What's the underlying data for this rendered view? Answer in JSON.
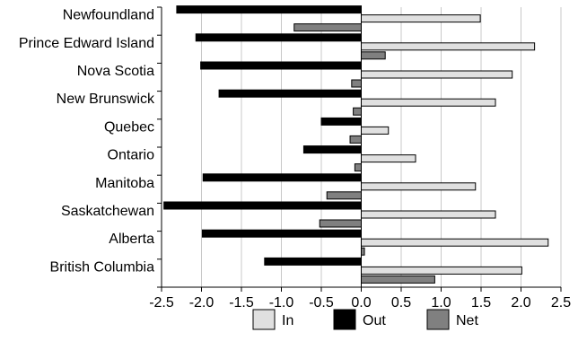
{
  "chart_data": {
    "type": "bar",
    "orientation": "horizontal",
    "categories": [
      "Newfoundland",
      "Prince Edward Island",
      "Nova Scotia",
      "New Brunswick",
      "Quebec",
      "Ontario",
      "Manitoba",
      "Saskatchewan",
      "Alberta",
      "British Columbia"
    ],
    "series": [
      {
        "name": "In",
        "color": "#e0e0e0",
        "values": [
          1.49,
          2.17,
          1.89,
          1.68,
          0.34,
          0.68,
          1.43,
          1.68,
          2.34,
          2.01
        ]
      },
      {
        "name": "Out",
        "color": "#000000",
        "values": [
          -2.31,
          -2.07,
          -2.01,
          -1.78,
          -0.5,
          -0.72,
          -1.98,
          -2.47,
          -1.99,
          -1.21
        ]
      },
      {
        "name": "Net",
        "color": "#808080",
        "values": [
          -0.84,
          0.3,
          -0.12,
          -0.1,
          -0.14,
          -0.08,
          -0.43,
          -0.52,
          0.04,
          0.92
        ]
      }
    ],
    "xlim": [
      -2.5,
      2.5
    ],
    "xticks": [
      -2.5,
      -2.0,
      -1.5,
      -1.0,
      -0.5,
      0.0,
      0.5,
      1.0,
      1.5,
      2.0,
      2.5
    ],
    "xtick_labels": [
      "-2.5",
      "-2.0",
      "-1.5",
      "-1.0",
      "-0.5",
      "0.0",
      "0.5",
      "1.0",
      "1.5",
      "2.0",
      "2.5"
    ],
    "title": "",
    "xlabel": "",
    "ylabel": "",
    "grid": "vertical",
    "legend_position": "bottom"
  }
}
